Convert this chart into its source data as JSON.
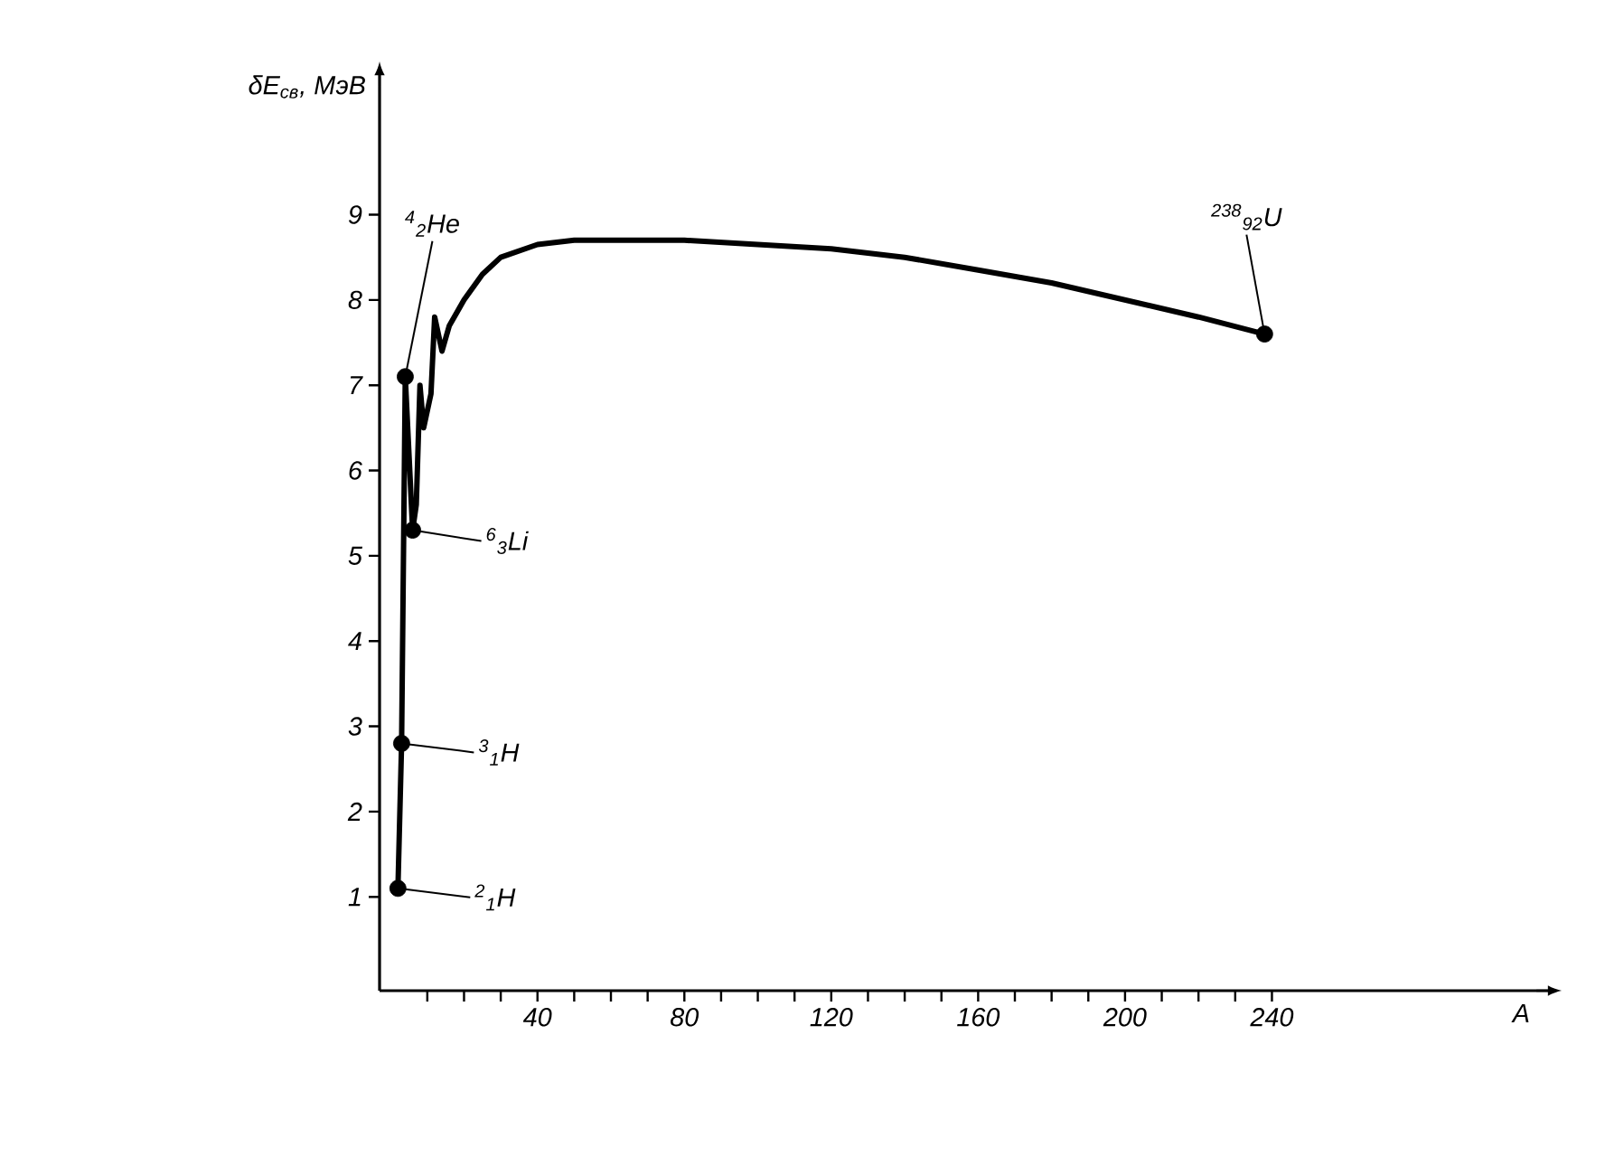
{
  "chart_data": {
    "type": "line",
    "xlabel": "A",
    "ylabel": "δE$_{св}$, МэВ",
    "xlim": [
      -3,
      312
    ],
    "ylim": [
      -0.1,
      10.5
    ],
    "xticks": [
      {
        "value": 10,
        "label": null
      },
      {
        "value": 20,
        "label": null
      },
      {
        "value": 30,
        "label": null
      },
      40,
      {
        "value": 50,
        "label": null
      },
      {
        "value": 60,
        "label": null
      },
      {
        "value": 70,
        "label": null
      },
      80,
      {
        "value": 90,
        "label": null
      },
      {
        "value": 100,
        "label": null
      },
      {
        "value": 110,
        "label": null
      },
      120,
      {
        "value": 130,
        "label": null
      },
      {
        "value": 140,
        "label": null
      },
      {
        "value": 150,
        "label": null
      },
      160,
      {
        "value": 170,
        "label": null
      },
      {
        "value": 180,
        "label": null
      },
      {
        "value": 190,
        "label": null
      },
      200,
      {
        "value": 210,
        "label": null
      },
      {
        "value": 220,
        "label": null
      },
      {
        "value": 230,
        "label": null
      },
      240
    ],
    "yticks": [
      1,
      2,
      3,
      4,
      5,
      6,
      7,
      8,
      9
    ],
    "grid": false,
    "series": [
      {
        "color": "#000000",
        "marker": "none",
        "x": [
          2,
          3,
          4,
          6,
          7,
          8,
          9,
          11,
          12,
          14,
          16,
          20,
          25,
          30,
          40,
          50,
          60,
          80,
          100,
          120,
          140,
          160,
          180,
          200,
          220,
          238
        ],
        "values": [
          1.1,
          2.8,
          7.1,
          5.3,
          5.6,
          7.0,
          6.5,
          6.9,
          7.8,
          7.4,
          7.7,
          8.0,
          8.3,
          8.5,
          8.65,
          8.7,
          8.7,
          8.7,
          8.65,
          8.6,
          8.5,
          8.35,
          8.2,
          8.0,
          7.8,
          7.6
        ]
      },
      {
        "type": "scatter",
        "color": "#000000",
        "marker": "circle",
        "x": [
          2,
          3,
          4,
          6,
          238
        ],
        "values": [
          1.1,
          2.8,
          7.1,
          5.3,
          7.6
        ]
      }
    ],
    "annotations": [
      {
        "text": "$^{4}$$_{2}$He",
        "x": 4,
        "y": 7.1
      },
      {
        "text": "$^{6}$$_{3}$Li",
        "x": 6,
        "y": 5.3
      },
      {
        "text": "$^{3}$$_{1}$H",
        "x": 3,
        "y": 2.8
      },
      {
        "text": "$^{2}$$_{1}$H",
        "x": 2,
        "y": 1.1
      },
      {
        "text": "$^{238}$$_{92}$U",
        "x": 238,
        "y": 7.6
      }
    ]
  }
}
